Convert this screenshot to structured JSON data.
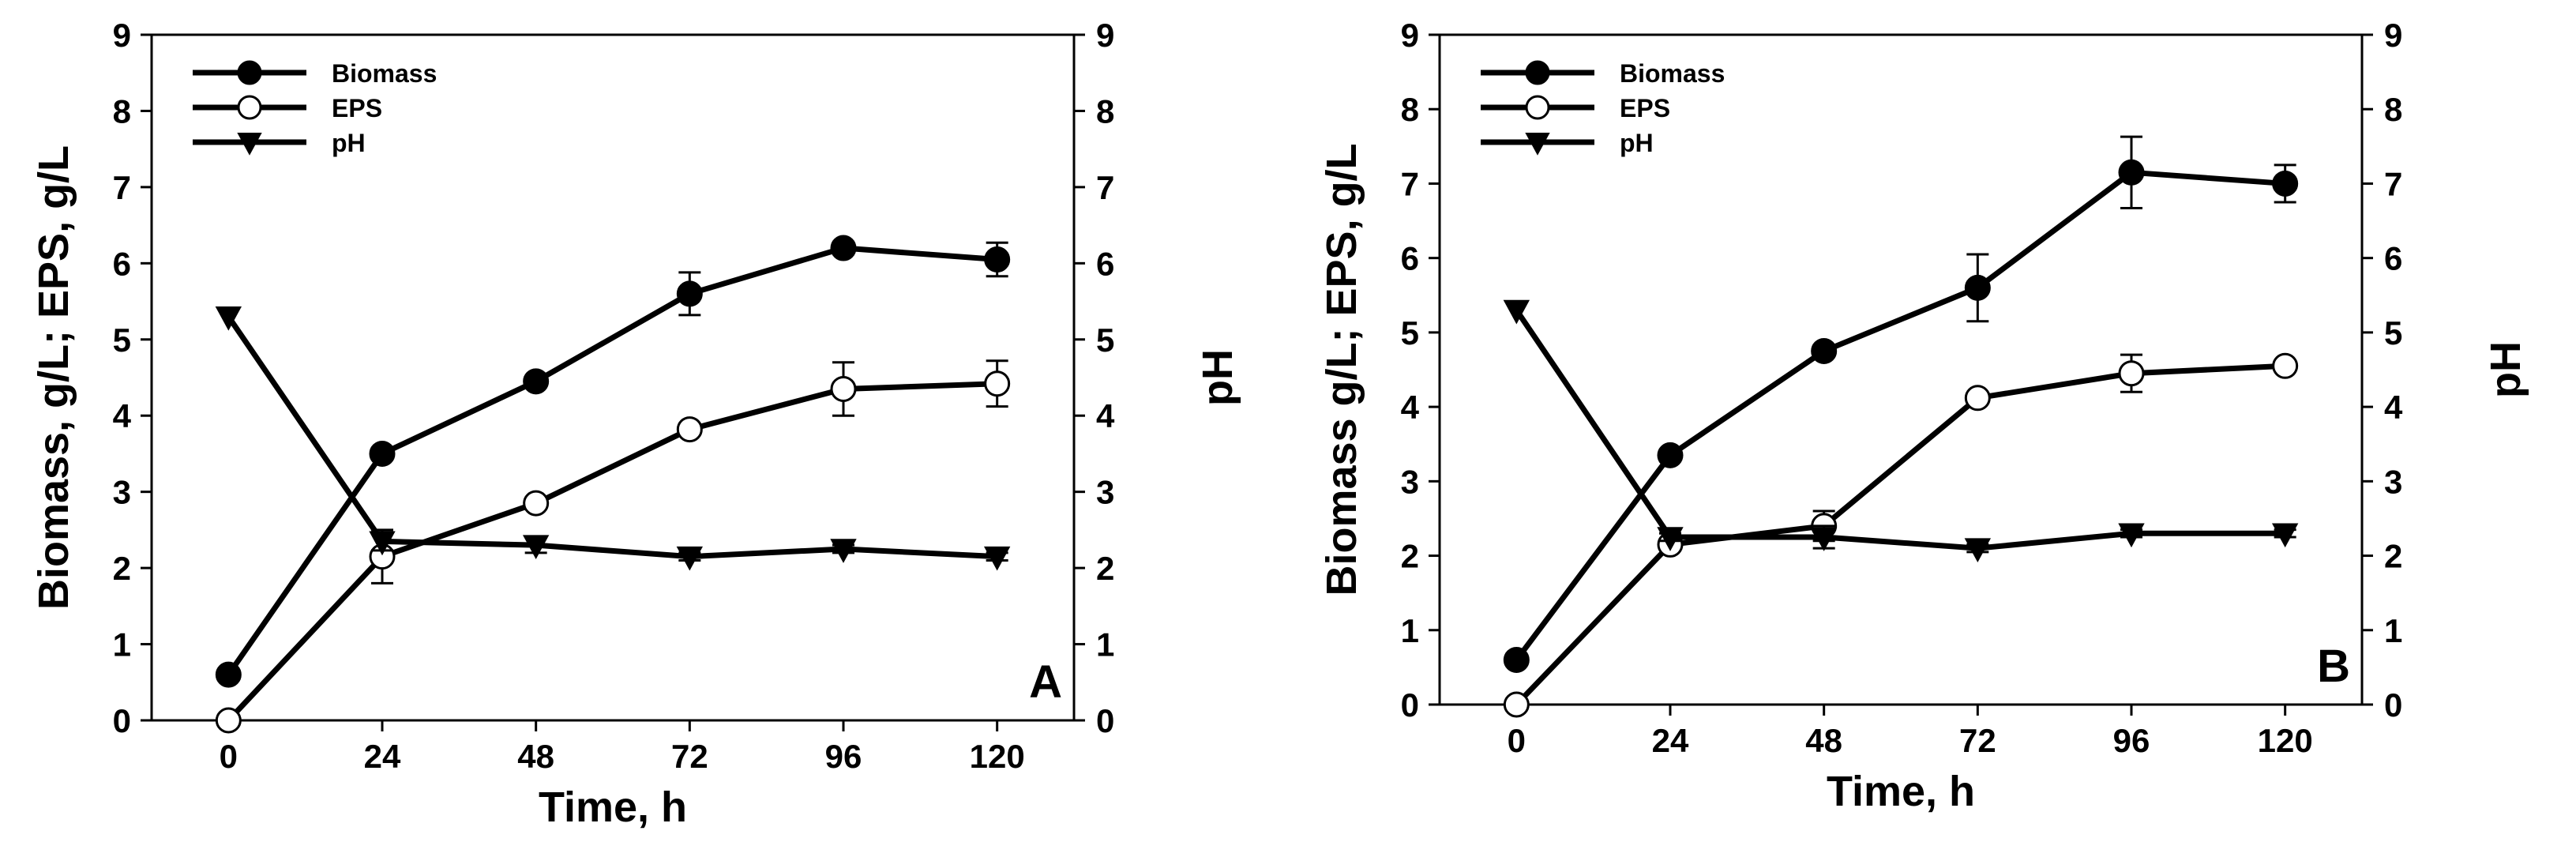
{
  "chart_data": [
    {
      "type": "line",
      "panel_label": "A",
      "xlabel": "Time, h",
      "ylabel": "Biomass, g/L; EPS, g/L",
      "y2label": "pH",
      "x": [
        0,
        24,
        48,
        72,
        96,
        120
      ],
      "xticks": [
        "0",
        "24",
        "48",
        "72",
        "96",
        "120"
      ],
      "xlim": [
        -12,
        132
      ],
      "ylim": [
        0,
        9
      ],
      "y2lim": [
        0,
        9
      ],
      "yticks": [
        "0",
        "1",
        "2",
        "3",
        "4",
        "5",
        "6",
        "7",
        "8",
        "9"
      ],
      "y2ticks": [
        "0",
        "1",
        "2",
        "3",
        "4",
        "5",
        "6",
        "7",
        "8",
        "9"
      ],
      "legend_position": "top-left",
      "series": [
        {
          "name": "Biomass",
          "marker": "filled-circle",
          "values": [
            0.6,
            3.5,
            4.45,
            5.6,
            6.2,
            6.05
          ],
          "errors": [
            0,
            0,
            0,
            0.28,
            0.08,
            0.22
          ]
        },
        {
          "name": "EPS",
          "marker": "open-circle",
          "values": [
            0.0,
            2.15,
            2.85,
            3.82,
            4.35,
            4.42
          ],
          "errors": [
            0,
            0.35,
            0,
            0,
            0.35,
            0.3
          ]
        },
        {
          "name": "pH",
          "marker": "filled-triangle-down",
          "values": [
            5.3,
            2.35,
            2.3,
            2.15,
            2.25,
            2.15
          ],
          "errors": [
            0,
            0.12,
            0.1,
            0.05,
            0.05,
            0.05
          ]
        }
      ]
    },
    {
      "type": "line",
      "panel_label": "B",
      "xlabel": "Time, h",
      "ylabel": "Biomass g/L; EPS, g/L",
      "y2label": "pH",
      "x": [
        0,
        24,
        48,
        72,
        96,
        120
      ],
      "xticks": [
        "0",
        "24",
        "48",
        "72",
        "96",
        "120"
      ],
      "xlim": [
        -12,
        132
      ],
      "ylim": [
        0,
        9
      ],
      "y2lim": [
        0,
        9
      ],
      "yticks": [
        "0",
        "1",
        "2",
        "3",
        "4",
        "5",
        "6",
        "7",
        "8",
        "9"
      ],
      "y2ticks": [
        "0",
        "1",
        "2",
        "3",
        "4",
        "5",
        "6",
        "7",
        "8",
        "9"
      ],
      "legend_position": "top-left",
      "series": [
        {
          "name": "Biomass",
          "marker": "filled-circle",
          "values": [
            0.6,
            3.35,
            4.75,
            5.6,
            7.15,
            7.0
          ],
          "errors": [
            0,
            0,
            0,
            0.45,
            0.48,
            0.25
          ]
        },
        {
          "name": "EPS",
          "marker": "open-circle",
          "values": [
            0.0,
            2.15,
            2.4,
            4.12,
            4.45,
            4.55
          ],
          "errors": [
            0,
            0,
            0.2,
            0,
            0.25,
            0
          ]
        },
        {
          "name": "pH",
          "marker": "filled-triangle-down",
          "values": [
            5.3,
            2.25,
            2.25,
            2.1,
            2.3,
            2.3
          ],
          "errors": [
            0,
            0.05,
            0.15,
            0.05,
            0.05,
            0.05
          ]
        }
      ]
    }
  ]
}
